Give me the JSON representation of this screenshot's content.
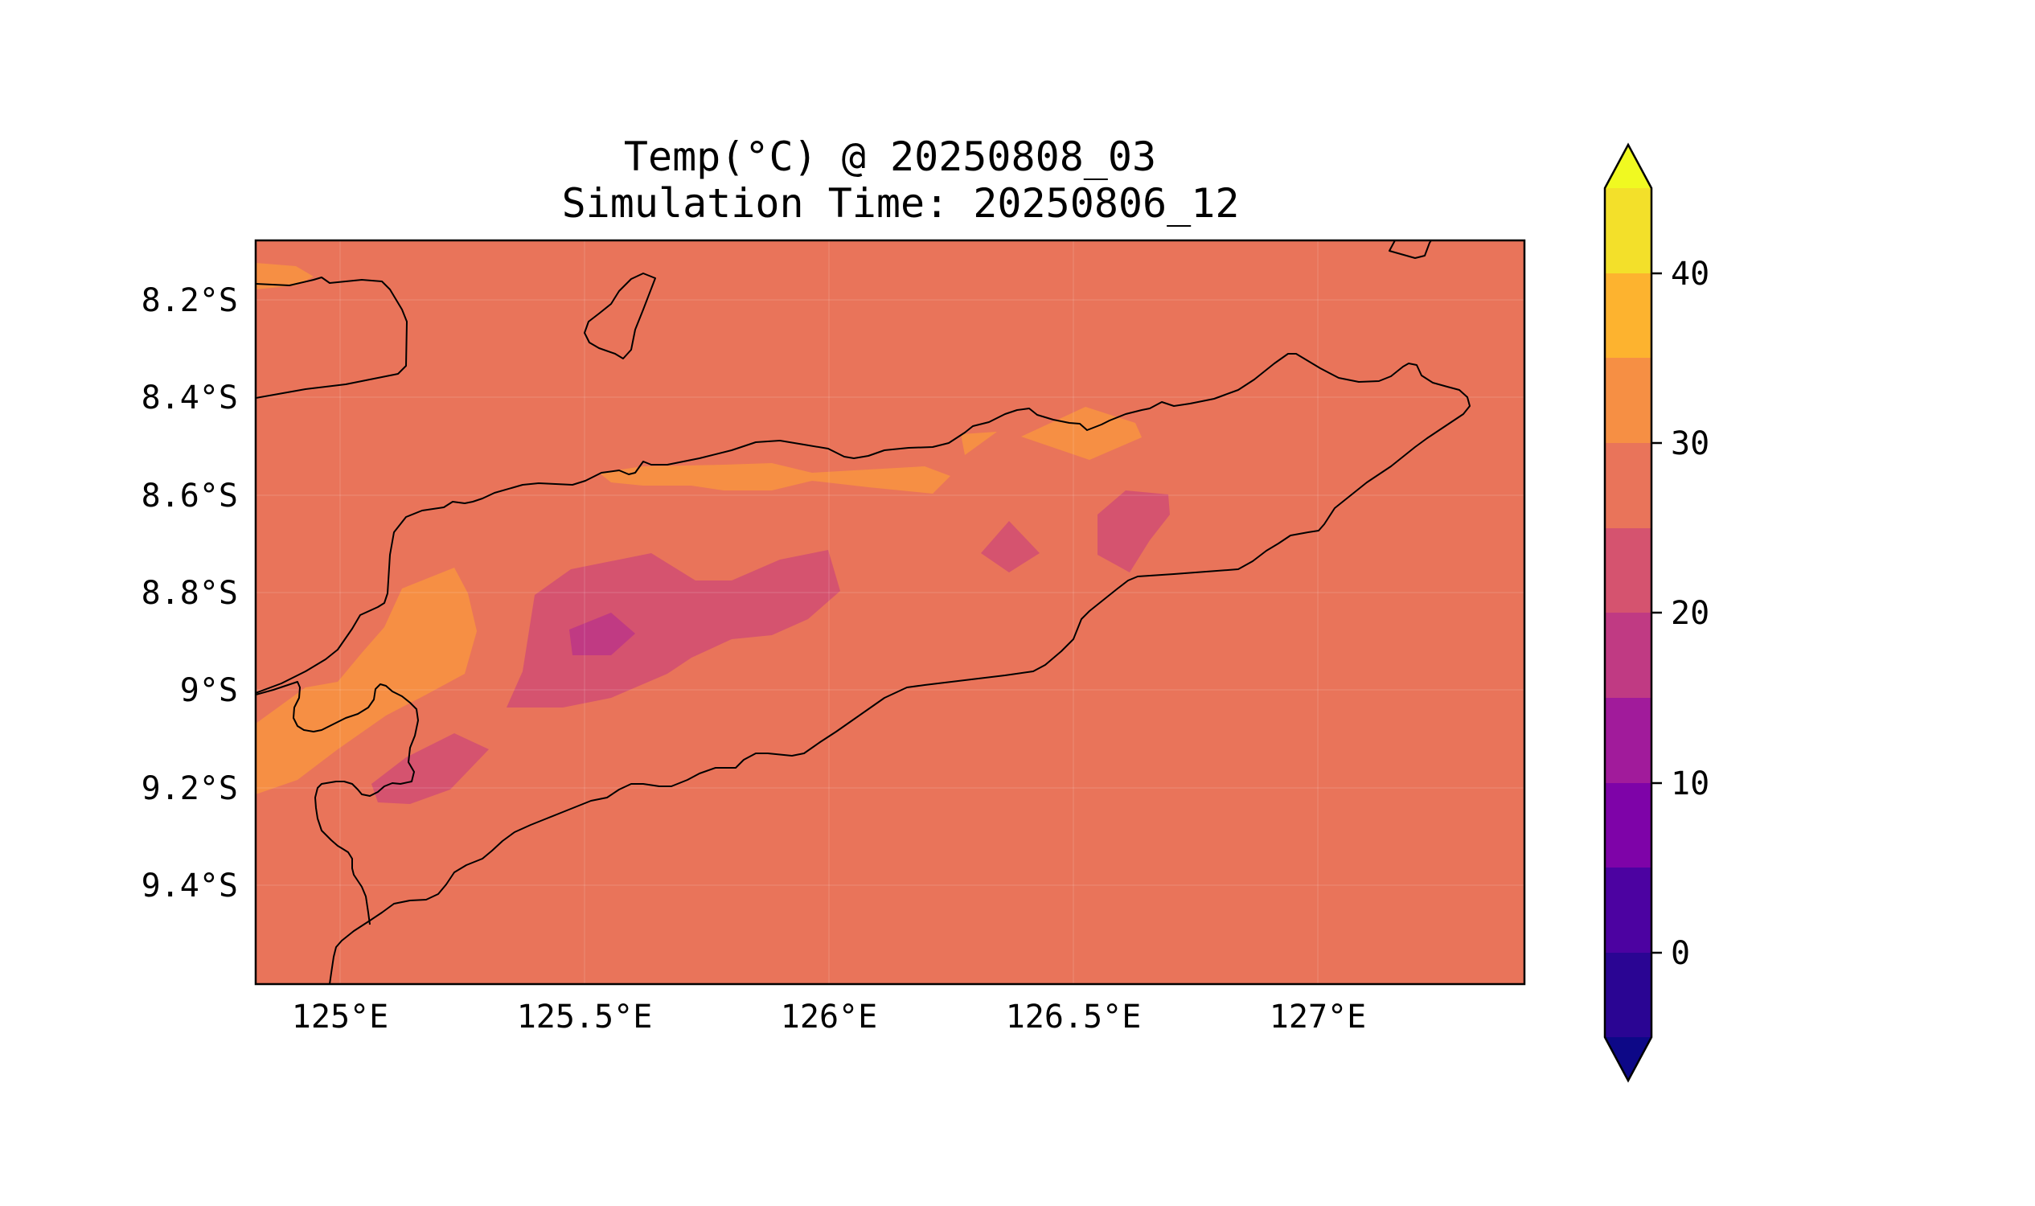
{
  "title": {
    "line1": "Temp(°C) @ 20250808_03",
    "line2": "Simulation Time: 20250806_12"
  },
  "map": {
    "y_ticks": [
      "8.2°S",
      "8.4°S",
      "8.6°S",
      "8.8°S",
      "9°S",
      "9.2°S",
      "9.4°S"
    ],
    "x_ticks": [
      "125°E",
      "125.5°E",
      "126°E",
      "126.5°E",
      "127°E"
    ],
    "lon_range": [
      124.83,
      127.42
    ],
    "lat_range": [
      -9.6,
      -8.08
    ],
    "background_color": "#e9745a",
    "coastline_color": "#000000"
  },
  "colorbar": {
    "tick_labels": [
      "0",
      "10",
      "20",
      "30",
      "40"
    ],
    "levels": [
      -5,
      0,
      5,
      10,
      15,
      20,
      25,
      30,
      35,
      40,
      45
    ],
    "extend": "both",
    "colors": [
      "#0d0887",
      "#2a0593",
      "#4c02a1",
      "#7e03a8",
      "#a11b9b",
      "#c03a83",
      "#d5536f",
      "#e9745a",
      "#f68f44",
      "#fdb32f",
      "#f3e02a",
      "#f0f921"
    ]
  }
}
